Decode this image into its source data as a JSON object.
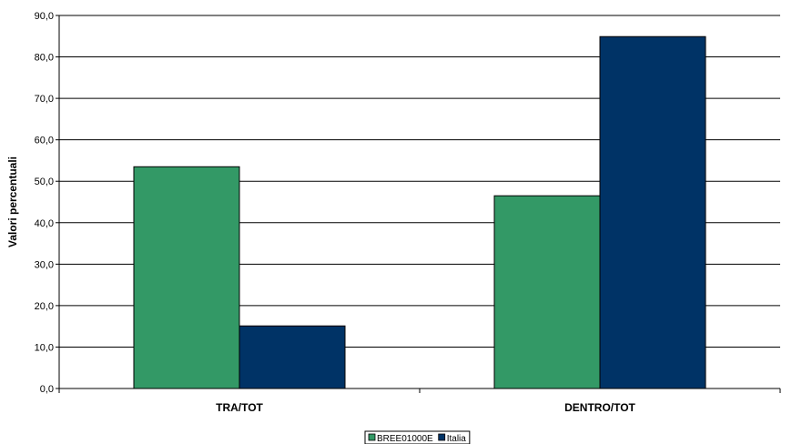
{
  "chart_data": {
    "type": "bar",
    "categories": [
      "TRA/TOT",
      "DENTRO/TOT"
    ],
    "series": [
      {
        "name": "BREE01000E",
        "values": [
          53.5,
          46.5
        ],
        "color": "#339966"
      },
      {
        "name": "Italia",
        "values": [
          15.1,
          84.9
        ],
        "color": "#003366"
      }
    ],
    "ylabel": "Valori percentuali",
    "xlabel": "",
    "ylim": [
      0,
      90
    ],
    "yticks": [
      "0,0",
      "10,0",
      "20,0",
      "30,0",
      "40,0",
      "50,0",
      "60,0",
      "70,0",
      "80,0",
      "90,0"
    ],
    "grid": true,
    "legend_position": "bottom"
  }
}
